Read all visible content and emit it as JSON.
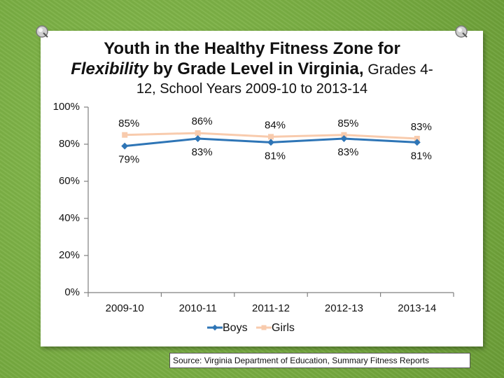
{
  "chart_data": {
    "type": "line",
    "title_bold": "Youth in the Healthy Fitness Zone for",
    "title_italic": "Flexibility",
    "title_bold_2": " by Grade Level in Virginia,",
    "title_rest": " Grades 4-",
    "subtitle": "12, School Years 2009-10 to 2013-14",
    "categories": [
      "2009-10",
      "2010-11",
      "2011-12",
      "2012-13",
      "2013-14"
    ],
    "series": [
      {
        "name": "Boys",
        "color": "#2e75b6",
        "values": [
          79,
          83,
          81,
          83,
          81
        ],
        "labels": [
          "79%",
          "83%",
          "81%",
          "83%",
          "81%"
        ]
      },
      {
        "name": "Girls",
        "color": "#f8cbad",
        "values": [
          85,
          86,
          84,
          85,
          83
        ],
        "labels": [
          "85%",
          "86%",
          "84%",
          "85%",
          "83%"
        ]
      }
    ],
    "ylim": [
      0,
      100
    ],
    "yticks": [
      0,
      20,
      40,
      60,
      80,
      100
    ],
    "ytick_labels": [
      "0%",
      "20%",
      "40%",
      "60%",
      "80%",
      "100%"
    ],
    "legend_position": "bottom",
    "grid": false
  },
  "source": "Source: Virginia Department of Education, Summary Fitness Reports"
}
